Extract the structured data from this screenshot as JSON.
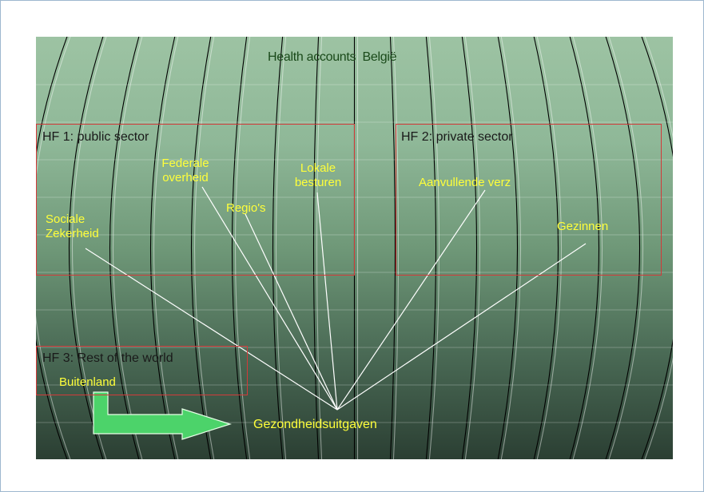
{
  "title": "Health accounts  België",
  "boxes": {
    "hf1": "HF 1: public sector",
    "hf2": "HF 2: private sector",
    "hf3": "HF 3: Rest of the world"
  },
  "nodes": {
    "sociale": "Sociale Zekerheid",
    "federale": "Federale overheid",
    "regios": "Regio's",
    "lokale": "Lokale besturen",
    "aanvullende": "Aanvullende verz",
    "gezinnen": "Gezinnen",
    "buitenland": "Buitenland",
    "target": "Gezondheidsuitgaven"
  },
  "colors": {
    "box_border": "#d23a3a",
    "label_yellow": "#ffff3a",
    "arrow_green": "#4cd36a"
  }
}
